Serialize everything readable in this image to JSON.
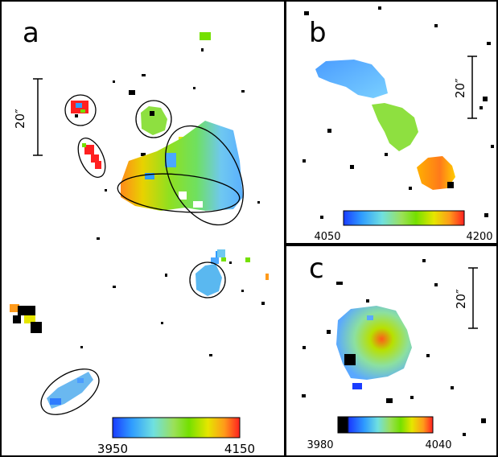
{
  "panels": [
    {
      "id": "a",
      "letter": "a",
      "scale_label": "20″",
      "colorbar": {
        "min_label": "3950",
        "max_label": "4150",
        "stops": [
          "#1a3cff",
          "#2f9cff",
          "#6fe0e0",
          "#9be05a",
          "#74e000",
          "#e6e600",
          "#ff9a1a",
          "#ff2020"
        ]
      }
    },
    {
      "id": "b",
      "letter": "b",
      "scale_label": "20″",
      "colorbar": {
        "min_label": "4050",
        "max_label": "4200",
        "stops": [
          "#1a3cff",
          "#2f9cff",
          "#6fe0e0",
          "#9be05a",
          "#74e000",
          "#e6e600",
          "#ff9a1a",
          "#ff2020"
        ]
      }
    },
    {
      "id": "c",
      "letter": "c",
      "scale_label": "20″",
      "colorbar": {
        "min_label": "3980",
        "max_label": "4040",
        "stops": [
          "#000000",
          "#1a3cff",
          "#2f9cff",
          "#6fe0e0",
          "#9be05a",
          "#74e000",
          "#e6e600",
          "#ff9a1a",
          "#ff2020"
        ]
      }
    }
  ],
  "colors": {
    "frame": "#000000",
    "background": "#ffffff",
    "ellipse": "#000000"
  }
}
